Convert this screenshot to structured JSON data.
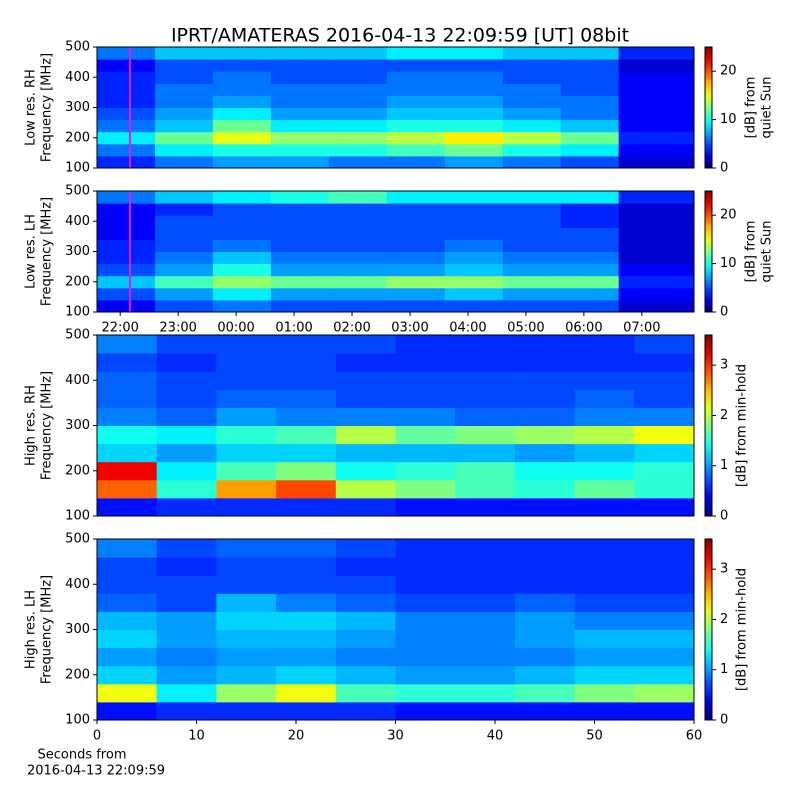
{
  "chart_data": [
    {
      "type": "heatmap",
      "title": "IPRT/AMATERAS 2016-04-13 22:09:59 [UT]   08bit",
      "ylabel": [
        "Low res. RH",
        "Frequency [MHz]"
      ],
      "colorbar_label": [
        "[dB] from",
        "quiet Sun"
      ],
      "x": [
        21.6,
        22.6,
        23.6,
        24.6,
        25.6,
        26.6,
        27.6,
        28.6,
        29.6,
        30.6,
        31.9
      ],
      "y": [
        100,
        140,
        180,
        220,
        260,
        300,
        340,
        380,
        420,
        460,
        500
      ],
      "z": [
        [
          4,
          6,
          7,
          7,
          6,
          6,
          7,
          6,
          5,
          2
        ],
        [
          6,
          9,
          10,
          10,
          10,
          11,
          12,
          10,
          9,
          3
        ],
        [
          9,
          12,
          15,
          13,
          13,
          14,
          16,
          14,
          12,
          4
        ],
        [
          6,
          8,
          12,
          9,
          9,
          10,
          10,
          9,
          8,
          3
        ],
        [
          5,
          7,
          9,
          7,
          7,
          8,
          8,
          7,
          6,
          3
        ],
        [
          4,
          6,
          7,
          6,
          6,
          7,
          7,
          6,
          6,
          3
        ],
        [
          4,
          6,
          6,
          6,
          6,
          6,
          6,
          6,
          5,
          3
        ],
        [
          4,
          5,
          6,
          5,
          5,
          6,
          6,
          5,
          5,
          3
        ],
        [
          3,
          5,
          5,
          5,
          5,
          5,
          5,
          5,
          5,
          2
        ],
        [
          6,
          8,
          8,
          8,
          8,
          9,
          9,
          8,
          8,
          4
        ]
      ],
      "xlim": [
        21.6,
        31.9
      ],
      "ylim": [
        100,
        500
      ],
      "yticks": [
        100,
        200,
        300,
        400,
        500
      ],
      "zlim": [
        0,
        25
      ],
      "zticks": [
        0,
        10,
        20
      ],
      "marker_x": 22.17,
      "marker_color": "#e619e6"
    },
    {
      "type": "heatmap",
      "ylabel": [
        "Low res. LH",
        "Frequency [MHz]"
      ],
      "colorbar_label": [
        "[dB] from",
        "quiet Sun"
      ],
      "x": [
        21.6,
        22.6,
        23.6,
        24.6,
        25.6,
        26.6,
        27.6,
        28.6,
        29.6,
        30.6,
        31.9
      ],
      "y": [
        100,
        140,
        180,
        220,
        260,
        300,
        340,
        380,
        420,
        460,
        500
      ],
      "z": [
        [
          3,
          5,
          6,
          5,
          5,
          5,
          5,
          5,
          5,
          2
        ],
        [
          5,
          7,
          9,
          7,
          7,
          7,
          8,
          7,
          7,
          3
        ],
        [
          8,
          11,
          13,
          12,
          12,
          13,
          13,
          12,
          12,
          4
        ],
        [
          5,
          7,
          10,
          7,
          7,
          7,
          8,
          7,
          7,
          3
        ],
        [
          4,
          6,
          8,
          6,
          6,
          6,
          7,
          6,
          6,
          2
        ],
        [
          4,
          5,
          6,
          5,
          5,
          5,
          6,
          5,
          5,
          2
        ],
        [
          3,
          5,
          5,
          5,
          5,
          5,
          5,
          5,
          5,
          2
        ],
        [
          3,
          5,
          5,
          5,
          5,
          5,
          5,
          5,
          4,
          2
        ],
        [
          3,
          4,
          5,
          5,
          5,
          5,
          5,
          5,
          4,
          2
        ],
        [
          6,
          8,
          9,
          10,
          11,
          9,
          9,
          9,
          9,
          4
        ]
      ],
      "xlim": [
        21.6,
        31.9
      ],
      "ylim": [
        100,
        500
      ],
      "yticks": [
        100,
        200,
        300,
        400,
        500
      ],
      "xticks": [
        {
          "value": 22,
          "label": "22:00"
        },
        {
          "value": 23,
          "label": "23:00"
        },
        {
          "value": 24,
          "label": "00:00"
        },
        {
          "value": 25,
          "label": "01:00"
        },
        {
          "value": 26,
          "label": "02:00"
        },
        {
          "value": 27,
          "label": "03:00"
        },
        {
          "value": 28,
          "label": "04:00"
        },
        {
          "value": 29,
          "label": "05:00"
        },
        {
          "value": 30,
          "label": "06:00"
        },
        {
          "value": 31,
          "label": "07:00"
        }
      ],
      "zlim": [
        0,
        25
      ],
      "zticks": [
        0,
        10,
        20
      ],
      "marker_x": 22.17,
      "marker_color": "#e619e6"
    },
    {
      "type": "heatmap",
      "ylabel": [
        "High res. RH",
        "Frequency [MHz]"
      ],
      "colorbar_label": [
        "[dB] from min-hold"
      ],
      "x": [
        0,
        6,
        12,
        18,
        24,
        30,
        36,
        42,
        48,
        54,
        60
      ],
      "y": [
        100,
        140,
        180,
        220,
        260,
        300,
        340,
        380,
        420,
        460,
        500
      ],
      "z": [
        [
          0.5,
          0.6,
          0.6,
          0.6,
          0.6,
          0.5,
          0.5,
          0.5,
          0.5,
          0.5
        ],
        [
          2.8,
          1.5,
          2.6,
          2.9,
          2.0,
          1.8,
          1.6,
          1.5,
          1.7,
          1.5
        ],
        [
          3.2,
          1.3,
          1.6,
          1.8,
          1.4,
          1.5,
          1.6,
          1.4,
          1.4,
          1.5
        ],
        [
          1.2,
          1.0,
          1.2,
          1.2,
          1.1,
          1.1,
          1.1,
          1.0,
          1.1,
          1.2
        ],
        [
          1.4,
          1.3,
          1.5,
          1.6,
          2.0,
          1.7,
          1.8,
          1.9,
          2.0,
          2.2
        ],
        [
          0.9,
          0.8,
          1.0,
          0.9,
          0.9,
          0.9,
          0.8,
          0.8,
          0.9,
          0.9
        ],
        [
          0.8,
          0.7,
          0.8,
          0.8,
          0.7,
          0.7,
          0.7,
          0.7,
          0.8,
          0.7
        ],
        [
          0.8,
          0.7,
          0.7,
          0.7,
          0.7,
          0.7,
          0.7,
          0.7,
          0.7,
          0.7
        ],
        [
          0.7,
          0.6,
          0.7,
          0.7,
          0.6,
          0.6,
          0.6,
          0.6,
          0.6,
          0.6
        ],
        [
          0.9,
          0.7,
          0.7,
          0.7,
          0.7,
          0.6,
          0.6,
          0.6,
          0.6,
          0.7
        ]
      ],
      "xlim": [
        0,
        60
      ],
      "ylim": [
        100,
        500
      ],
      "yticks": [
        100,
        200,
        300,
        400,
        500
      ],
      "zlim": [
        0,
        3.6
      ],
      "zticks": [
        0,
        1,
        2,
        3
      ]
    },
    {
      "type": "heatmap",
      "ylabel": [
        "High res. LH",
        "Frequency [MHz]"
      ],
      "colorbar_label": [
        "[dB] from min-hold"
      ],
      "xlabel": [
        "Seconds from",
        "2016-04-13 22:09:59"
      ],
      "x": [
        0,
        6,
        12,
        18,
        24,
        30,
        36,
        42,
        48,
        54,
        60
      ],
      "y": [
        100,
        140,
        180,
        220,
        260,
        300,
        340,
        380,
        420,
        460,
        500
      ],
      "z": [
        [
          0.5,
          0.6,
          0.6,
          0.6,
          0.6,
          0.5,
          0.5,
          0.5,
          0.5,
          0.5
        ],
        [
          2.2,
          1.3,
          1.9,
          2.2,
          1.6,
          1.5,
          1.5,
          1.6,
          1.8,
          1.9
        ],
        [
          1.2,
          1.0,
          1.1,
          1.2,
          1.1,
          1.0,
          1.0,
          1.1,
          1.2,
          1.2
        ],
        [
          1.0,
          0.9,
          1.0,
          1.0,
          0.9,
          0.9,
          0.9,
          0.9,
          1.0,
          1.0
        ],
        [
          1.2,
          1.0,
          1.1,
          1.1,
          1.0,
          0.9,
          0.9,
          1.0,
          1.1,
          1.1
        ],
        [
          1.1,
          1.0,
          1.2,
          1.2,
          1.1,
          0.9,
          0.9,
          1.0,
          0.9,
          0.9
        ],
        [
          0.8,
          0.7,
          1.1,
          0.9,
          0.8,
          0.7,
          0.7,
          0.8,
          0.7,
          0.7
        ],
        [
          0.7,
          0.7,
          0.7,
          0.7,
          0.7,
          0.6,
          0.6,
          0.6,
          0.6,
          0.6
        ],
        [
          0.7,
          0.6,
          0.7,
          0.7,
          0.6,
          0.6,
          0.6,
          0.6,
          0.6,
          0.6
        ],
        [
          0.9,
          0.7,
          0.8,
          0.8,
          0.7,
          0.6,
          0.6,
          0.6,
          0.6,
          0.6
        ]
      ],
      "xlim": [
        0,
        60
      ],
      "ylim": [
        100,
        500
      ],
      "yticks": [
        100,
        200,
        300,
        400,
        500
      ],
      "xticks": [
        0,
        10,
        20,
        30,
        40,
        50,
        60
      ],
      "zlim": [
        0,
        3.6
      ],
      "zticks": [
        0,
        1,
        2,
        3
      ]
    }
  ]
}
